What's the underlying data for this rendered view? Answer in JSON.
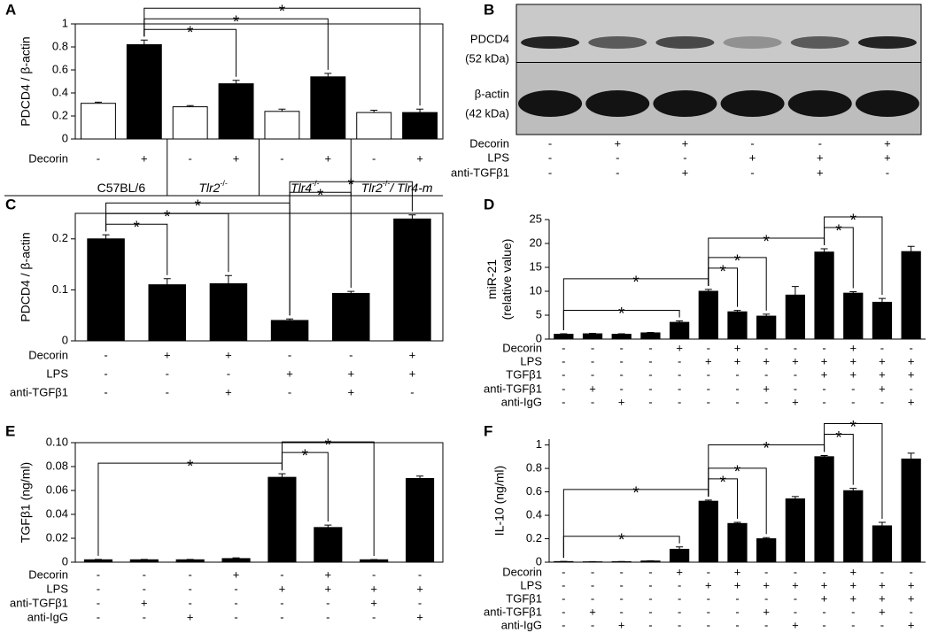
{
  "chart_data": [
    {
      "type": "bar",
      "panel": "A",
      "ylabel": [
        "PDCD4 / β-actin"
      ],
      "values": [
        0.31,
        0.82,
        0.28,
        0.48,
        0.24,
        0.54,
        0.23,
        0.23
      ],
      "errors": [
        0.01,
        0.04,
        0.01,
        0.03,
        0.02,
        0.03,
        0.02,
        0.03
      ],
      "colors": [
        "#ffffff",
        "#000000",
        "#ffffff",
        "#000000",
        "#ffffff",
        "#000000",
        "#ffffff",
        "#000000"
      ],
      "ylim": [
        0,
        1
      ],
      "yticks": [
        0,
        0.2,
        0.4,
        0.6,
        0.8,
        1
      ],
      "rows": [
        {
          "name": "Decorin",
          "signs": [
            "-",
            "+",
            "-",
            "+",
            "-",
            "+",
            "-",
            "+"
          ]
        }
      ],
      "groups": [
        {
          "span": [
            0,
            1
          ],
          "parts": [
            {
              "text": "C57BL/6",
              "style": "normal"
            }
          ]
        },
        {
          "span": [
            2,
            3
          ],
          "parts": [
            {
              "text": "Tlr2",
              "style": "italic"
            },
            {
              "text": "-/-",
              "style": "sup"
            }
          ]
        },
        {
          "span": [
            4,
            5
          ],
          "parts": [
            {
              "text": "Tlr4",
              "style": "italic"
            },
            {
              "text": "-/-",
              "style": "sup"
            }
          ]
        },
        {
          "span": [
            6,
            7
          ],
          "parts": [
            {
              "text": "Tlr2",
              "style": "italic"
            },
            {
              "text": "-/-",
              "style": "sup"
            },
            {
              "text": "/ Tlr4-m",
              "style": "italic"
            }
          ]
        }
      ],
      "annotations": [
        {
          "from": 1,
          "to": 3,
          "label": "*"
        },
        {
          "from": 1,
          "to": 5,
          "label": "*"
        },
        {
          "from": 1,
          "to": 7,
          "label": "*"
        }
      ]
    },
    {
      "type": "blot",
      "panel": "B",
      "bands": [
        {
          "label": [
            "PDCD4",
            "(52 kDa)"
          ]
        },
        {
          "label": [
            "β-actin",
            "(42 kDa)"
          ]
        }
      ],
      "rows": [
        {
          "name": "Decorin",
          "signs": [
            "-",
            "+",
            "+",
            "-",
            "-",
            "+"
          ]
        },
        {
          "name": "LPS",
          "signs": [
            "-",
            "-",
            "-",
            "+",
            "+",
            "+"
          ]
        },
        {
          "name": "anti-TGFβ1",
          "signs": [
            "-",
            "-",
            "+",
            "-",
            "+",
            "-"
          ]
        }
      ]
    },
    {
      "type": "bar",
      "panel": "C",
      "ylabel": [
        "PDCD4 / β-actin"
      ],
      "values": [
        0.2,
        0.11,
        0.112,
        0.04,
        0.093,
        0.239
      ],
      "errors": [
        0.008,
        0.012,
        0.016,
        0.003,
        0.004,
        0.008
      ],
      "color": "#000000",
      "ylim": [
        0,
        0.25
      ],
      "yticks": [
        0,
        0.1,
        0.2
      ],
      "rows": [
        {
          "name": "Decorin",
          "signs": [
            "-",
            "+",
            "+",
            "-",
            "-",
            "+"
          ]
        },
        {
          "name": "LPS",
          "signs": [
            "-",
            "-",
            "-",
            "+",
            "+",
            "+"
          ]
        },
        {
          "name": "anti-TGFβ1",
          "signs": [
            "-",
            "-",
            "+",
            "-",
            "+",
            "-"
          ]
        }
      ],
      "annotations": [
        {
          "from": 0,
          "to": 1,
          "label": "*"
        },
        {
          "from": 0,
          "to": 2,
          "label": "*"
        },
        {
          "from": 0,
          "to": 3,
          "label": "*"
        },
        {
          "from": 3,
          "to": 4,
          "label": "*"
        },
        {
          "from": 3,
          "to": 5,
          "label": "*"
        }
      ]
    },
    {
      "type": "bar",
      "panel": "D",
      "ylabel": [
        "miR-21",
        "(relative value)"
      ],
      "values": [
        1.0,
        1.1,
        1.0,
        1.3,
        3.5,
        10.0,
        5.7,
        4.8,
        9.2,
        18.2,
        9.6,
        7.7,
        18.3
      ],
      "errors": [
        0.1,
        0.1,
        0.1,
        0.1,
        0.3,
        0.4,
        0.3,
        0.4,
        1.8,
        0.7,
        0.3,
        0.8,
        1.1
      ],
      "color": "#000000",
      "ylim": [
        0,
        25
      ],
      "yticks": [
        0,
        5,
        10,
        15,
        20,
        25
      ],
      "rows": [
        {
          "name": "Decorin",
          "signs": [
            "-",
            "-",
            "-",
            "-",
            "+",
            "-",
            "+",
            "-",
            "-",
            "-",
            "+",
            "-",
            "-"
          ]
        },
        {
          "name": "LPS",
          "signs": [
            "-",
            "-",
            "-",
            "-",
            "-",
            "+",
            "+",
            "+",
            "+",
            "+",
            "+",
            "+",
            "+"
          ]
        },
        {
          "name": "TGFβ1",
          "signs": [
            "-",
            "-",
            "-",
            "-",
            "-",
            "-",
            "-",
            "-",
            "-",
            "+",
            "+",
            "+",
            "+"
          ]
        },
        {
          "name": "anti-TGFβ1",
          "signs": [
            "-",
            "+",
            "-",
            "-",
            "-",
            "-",
            "-",
            "+",
            "-",
            "-",
            "-",
            "+",
            "-"
          ]
        },
        {
          "name": "anti-IgG",
          "signs": [
            "-",
            "-",
            "+",
            "-",
            "-",
            "-",
            "-",
            "-",
            "+",
            "-",
            "-",
            "-",
            "+"
          ]
        }
      ],
      "annotations": [
        {
          "from": 0,
          "to": 4,
          "label": "*"
        },
        {
          "from": 0,
          "to": 5,
          "label": "*"
        },
        {
          "from": 5,
          "to": 6,
          "label": "*"
        },
        {
          "from": 5,
          "to": 7,
          "label": "*"
        },
        {
          "from": 5,
          "to": 9,
          "label": "*"
        },
        {
          "from": 9,
          "to": 10,
          "label": "*"
        },
        {
          "from": 9,
          "to": 11,
          "label": "*"
        }
      ]
    },
    {
      "type": "bar",
      "panel": "E",
      "ylabel": [
        "TGFβ1 (ng/ml)"
      ],
      "values": [
        0.002,
        0.002,
        0.002,
        0.003,
        0.071,
        0.029,
        0.002,
        0.07
      ],
      "errors": [
        0.0003,
        0.0003,
        0.0003,
        0.0006,
        0.003,
        0.002,
        0.0002,
        0.002
      ],
      "color": "#000000",
      "ylim": [
        0,
        0.1
      ],
      "yticks": [
        0,
        0.02,
        0.04,
        0.06,
        0.08,
        {
          "value": 0.1,
          "label": "0.10"
        }
      ],
      "rows": [
        {
          "name": "Decorin",
          "signs": [
            "-",
            "-",
            "-",
            "+",
            "-",
            "+",
            "-",
            "-"
          ]
        },
        {
          "name": "LPS",
          "signs": [
            "-",
            "-",
            "-",
            "-",
            "+",
            "+",
            "+",
            "+"
          ]
        },
        {
          "name": "anti-TGFβ1",
          "signs": [
            "-",
            "+",
            "-",
            "-",
            "-",
            "-",
            "+",
            "-"
          ]
        },
        {
          "name": "anti-IgG",
          "signs": [
            "-",
            "-",
            "+",
            "-",
            "-",
            "-",
            "-",
            "+"
          ]
        }
      ],
      "annotations": [
        {
          "from": 0,
          "to": 4,
          "label": "*"
        },
        {
          "from": 4,
          "to": 5,
          "label": "*"
        },
        {
          "from": 4,
          "to": 6,
          "label": "*"
        }
      ]
    },
    {
      "type": "bar",
      "panel": "F",
      "ylabel": [
        "IL-10 (ng/ml)"
      ],
      "values": [
        0.005,
        0.003,
        0.004,
        0.01,
        0.11,
        0.52,
        0.33,
        0.2,
        0.54,
        0.9,
        0.61,
        0.31,
        0.88
      ],
      "errors": [
        0.002,
        0.002,
        0.002,
        0.002,
        0.02,
        0.01,
        0.01,
        0.01,
        0.02,
        0.01,
        0.02,
        0.03,
        0.05
      ],
      "color": "#000000",
      "ylim": [
        0,
        1.05
      ],
      "yticks": [
        0,
        0.2,
        0.4,
        0.6,
        0.8,
        1
      ],
      "rows": [
        {
          "name": "Decorin",
          "signs": [
            "-",
            "-",
            "-",
            "-",
            "+",
            "-",
            "+",
            "-",
            "-",
            "-",
            "+",
            "-",
            "-"
          ]
        },
        {
          "name": "LPS",
          "signs": [
            "-",
            "-",
            "-",
            "-",
            "-",
            "+",
            "+",
            "+",
            "+",
            "+",
            "+",
            "+",
            "+"
          ]
        },
        {
          "name": "TGFβ1",
          "signs": [
            "-",
            "-",
            "-",
            "-",
            "-",
            "-",
            "-",
            "-",
            "-",
            "+",
            "+",
            "+",
            "+"
          ]
        },
        {
          "name": "anti-TGFβ1",
          "signs": [
            "-",
            "+",
            "-",
            "-",
            "-",
            "-",
            "-",
            "+",
            "-",
            "-",
            "-",
            "+",
            "-"
          ]
        },
        {
          "name": "anti-IgG",
          "signs": [
            "-",
            "-",
            "+",
            "-",
            "-",
            "-",
            "-",
            "-",
            "+",
            "-",
            "-",
            "-",
            "+"
          ]
        }
      ],
      "annotations": [
        {
          "from": 0,
          "to": 4,
          "label": "*"
        },
        {
          "from": 0,
          "to": 5,
          "label": "*"
        },
        {
          "from": 5,
          "to": 6,
          "label": "*"
        },
        {
          "from": 5,
          "to": 7,
          "label": "*"
        },
        {
          "from": 5,
          "to": 9,
          "label": "*"
        },
        {
          "from": 9,
          "to": 10,
          "label": "*"
        },
        {
          "from": 9,
          "to": 11,
          "label": "*"
        }
      ]
    }
  ]
}
